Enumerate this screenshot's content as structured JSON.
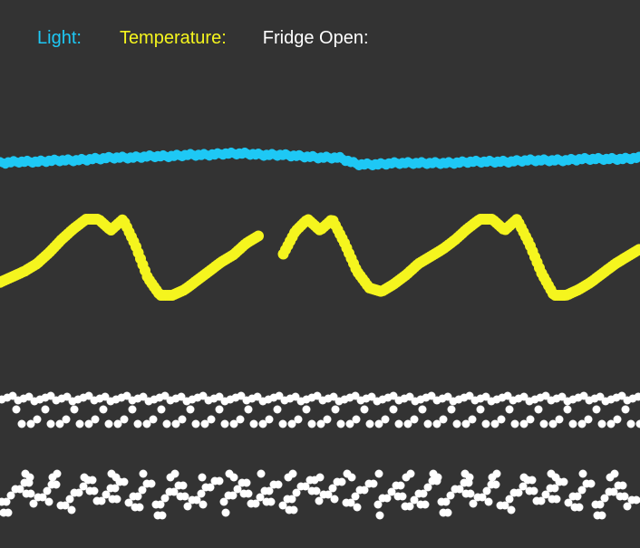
{
  "legend": {
    "light_label": "Light:",
    "temperature_label": "Temperature:",
    "fridge_label": "Fridge Open:"
  },
  "colors": {
    "background": "#333333",
    "light": "#1ec8f5",
    "temperature": "#f5f51e",
    "fridge": "#ffffff"
  },
  "chart_data": {
    "type": "line",
    "xlabel": "",
    "ylabel": "",
    "grid": false,
    "legend_position": "top-left",
    "series": [
      {
        "name": "Light",
        "values": [
          0.8,
          0.81,
          0.81,
          0.82,
          0.82,
          0.83,
          0.84,
          0.84,
          0.85,
          0.85,
          0.86,
          0.86,
          0.87,
          0.87,
          0.86,
          0.86,
          0.85,
          0.84,
          0.84,
          0.79,
          0.79,
          0.8,
          0.8,
          0.8,
          0.8,
          0.81,
          0.81,
          0.81,
          0.82,
          0.82,
          0.82,
          0.83,
          0.83,
          0.83,
          0.84
        ]
      },
      {
        "name": "Temperature",
        "values": [
          0.0,
          0.06,
          0.12,
          0.2,
          0.32,
          0.46,
          0.58,
          0.68,
          0.68,
          0.56,
          0.68,
          0.4,
          0.05,
          -0.14,
          -0.14,
          -0.08,
          0.02,
          0.12,
          0.22,
          0.3,
          0.42,
          0.5,
          null,
          0.3,
          0.55,
          0.68,
          0.56,
          0.68,
          0.42,
          0.12,
          -0.06,
          -0.1,
          -0.02,
          0.08,
          0.2,
          0.28,
          0.36,
          0.46,
          0.58,
          0.68,
          0.68,
          0.56,
          0.68,
          0.42,
          0.1,
          -0.14,
          -0.14,
          -0.08,
          0.0,
          0.1,
          0.2,
          0.28,
          0.36
        ]
      },
      {
        "name": "Fridge Open",
        "values": [
          1,
          0,
          1,
          0,
          1,
          0,
          1,
          0,
          1,
          0,
          1,
          0,
          1,
          0,
          1,
          0,
          1,
          0,
          1,
          0,
          1,
          0,
          1,
          0,
          1,
          0,
          1,
          0,
          1,
          0,
          1,
          0,
          1,
          0,
          1,
          0,
          1,
          0,
          1,
          0,
          1,
          0,
          1,
          0
        ]
      }
    ]
  }
}
